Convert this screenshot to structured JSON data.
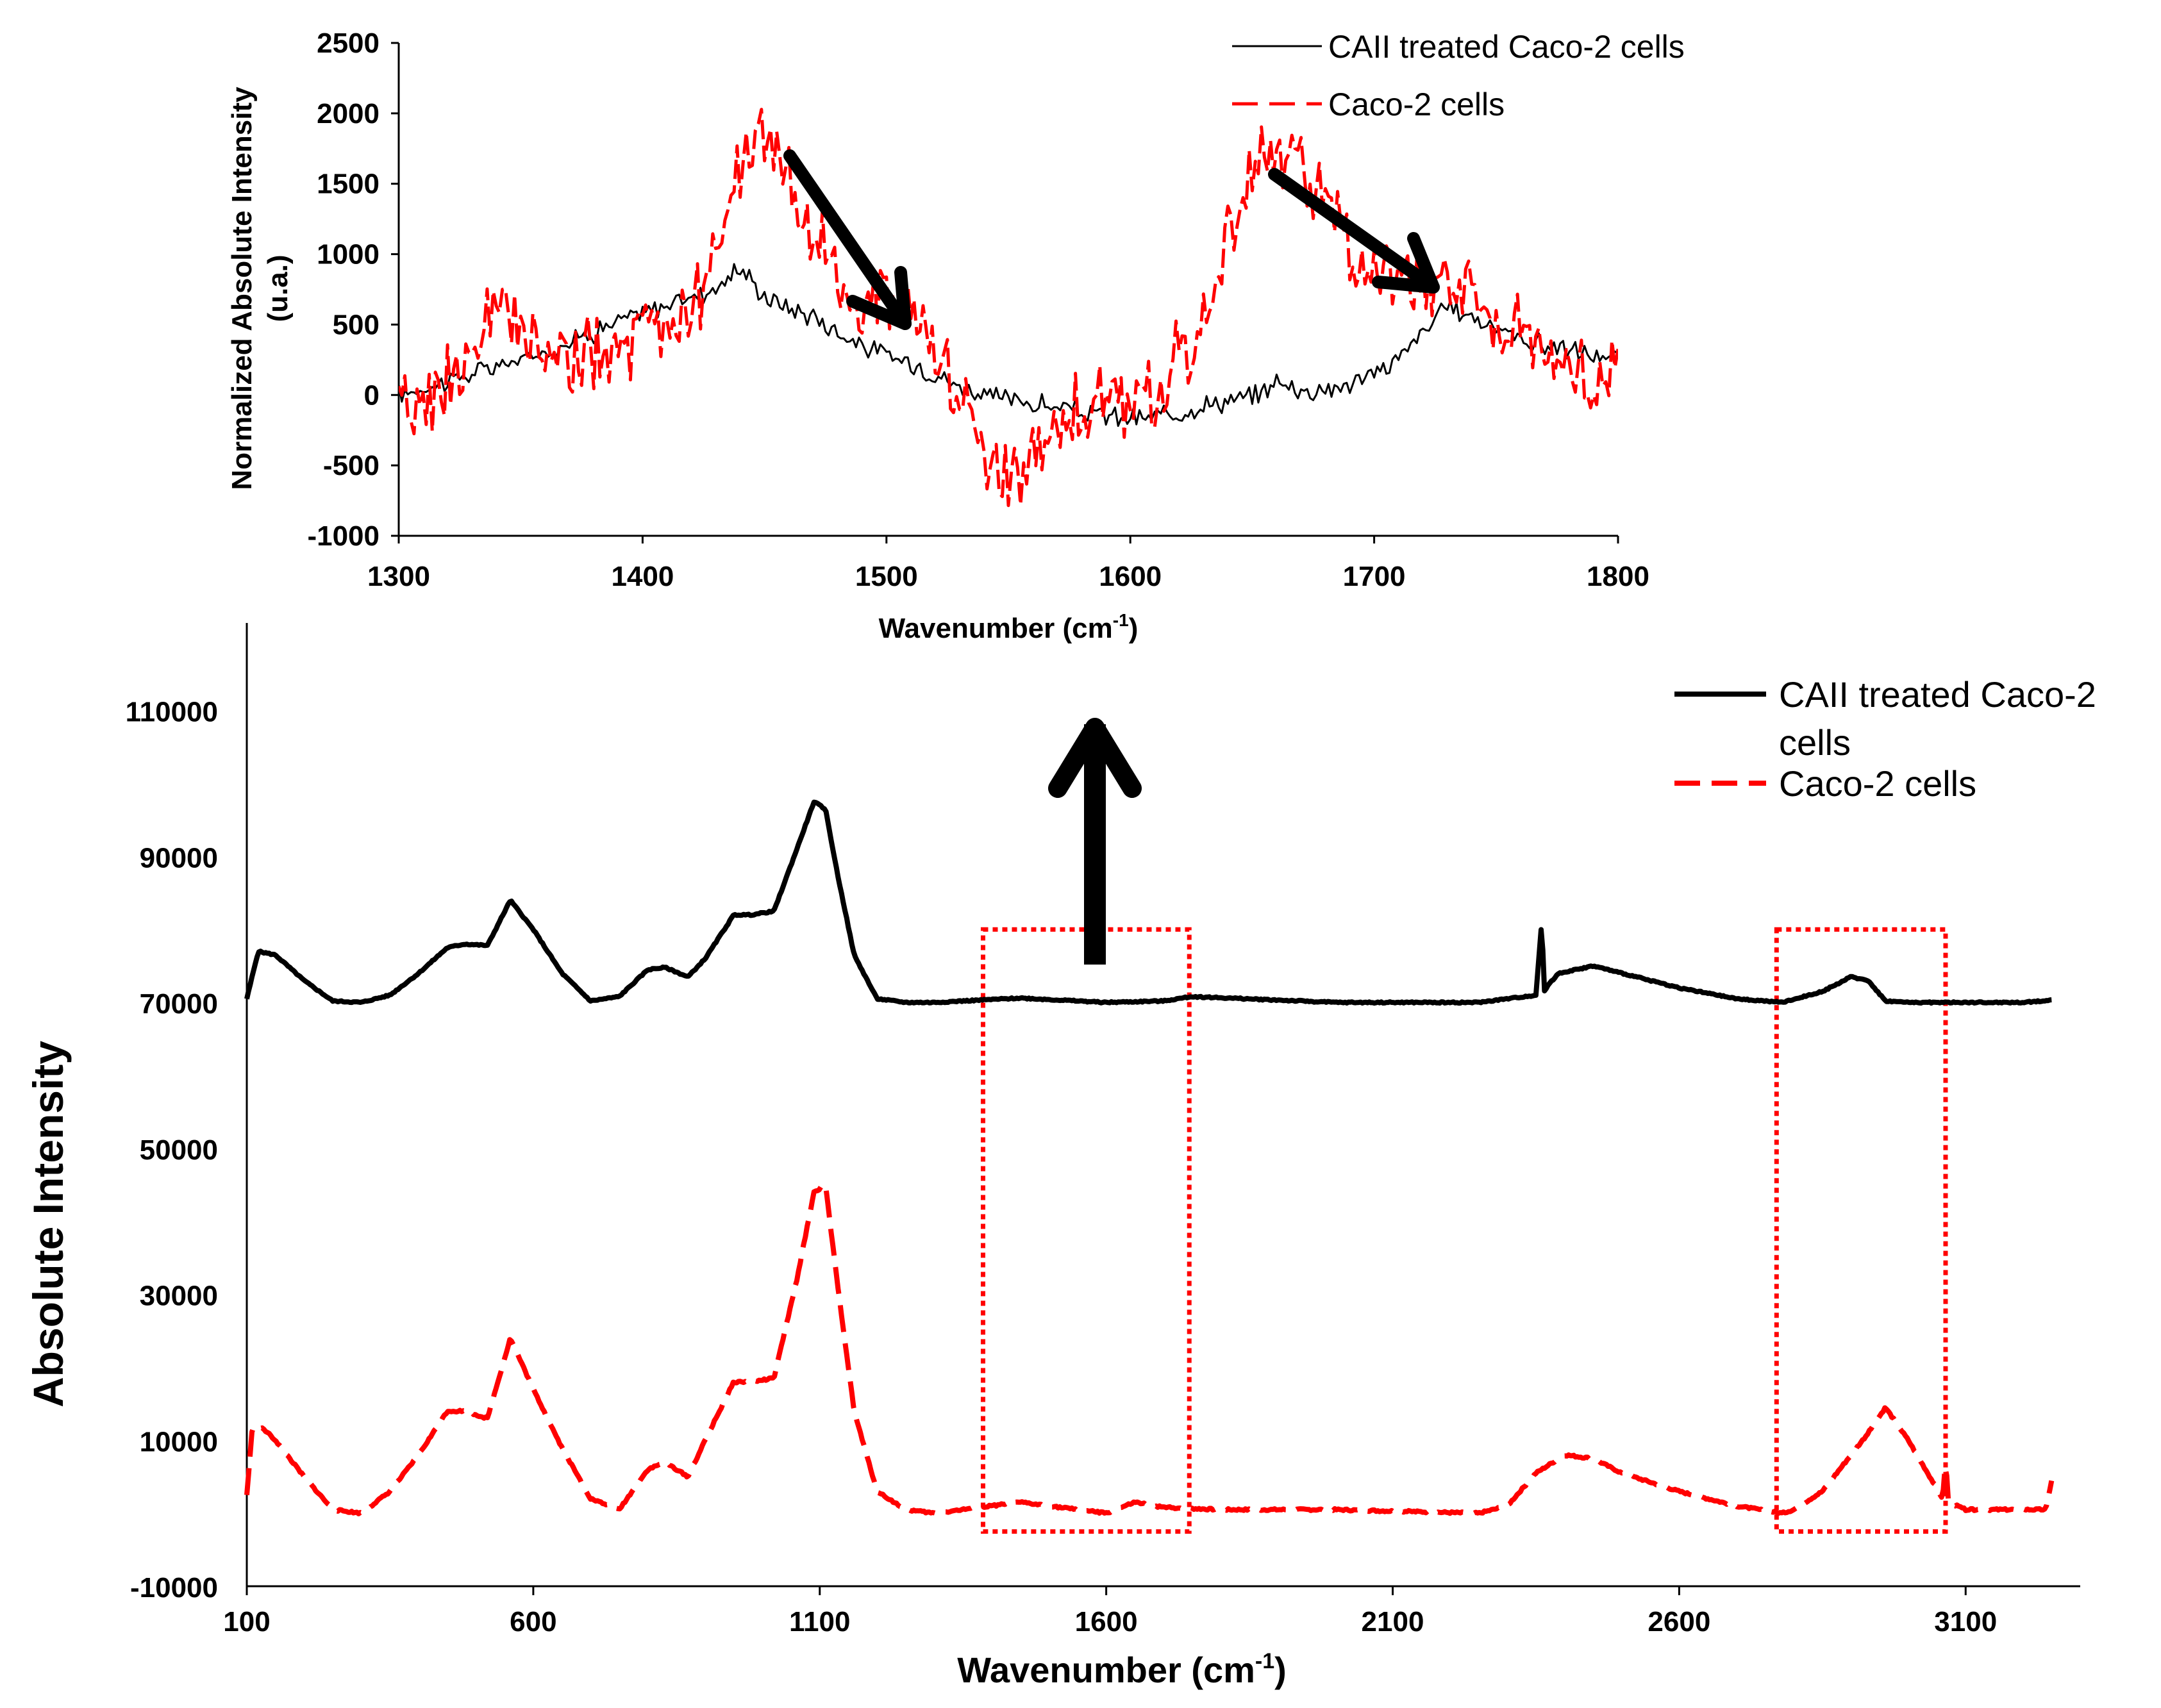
{
  "colors": {
    "treated": "#000000",
    "control": "#ff0000",
    "highlight": "#ff0000"
  },
  "chart_data": [
    {
      "type": "line",
      "title": "",
      "xlabel": "Wavenumber (cm",
      "xlabel_sup": "-1",
      "xlabel_close": ")",
      "ylabel": "Normalized Absolute Intensity",
      "ylabel2": "(u.a.)",
      "xlim": [
        1300,
        1800
      ],
      "ylim": [
        -1000,
        2500
      ],
      "xticks": [
        "1300",
        "1400",
        "1500",
        "1600",
        "1700",
        "1800"
      ],
      "yticks": [
        "2500",
        "2000",
        "1500",
        "1000",
        "500",
        "0",
        "-500",
        "-1000"
      ],
      "legend": [
        "CAII treated Caco-2 cells",
        "Caco-2 cells"
      ],
      "series": [
        {
          "name": "CAII treated Caco-2 cells",
          "style": "solid",
          "x": [
            1300,
            1310,
            1320,
            1330,
            1340,
            1350,
            1360,
            1370,
            1380,
            1390,
            1400,
            1410,
            1420,
            1430,
            1440,
            1450,
            1460,
            1470,
            1480,
            1490,
            1500,
            1510,
            1520,
            1530,
            1540,
            1550,
            1560,
            1570,
            1580,
            1590,
            1600,
            1610,
            1620,
            1630,
            1640,
            1650,
            1660,
            1670,
            1680,
            1690,
            1700,
            1710,
            1720,
            1730,
            1740,
            1750,
            1760,
            1770,
            1780,
            1790,
            1800
          ],
          "y": [
            0,
            50,
            100,
            150,
            200,
            250,
            300,
            380,
            450,
            520,
            580,
            640,
            700,
            760,
            900,
            700,
            620,
            560,
            450,
            350,
            280,
            230,
            150,
            60,
            0,
            -30,
            -60,
            -90,
            -120,
            -150,
            -170,
            -160,
            -120,
            -70,
            -40,
            -20,
            100,
            30,
            40,
            80,
            150,
            260,
            450,
            620,
            560,
            480,
            400,
            350,
            320,
            280,
            250
          ]
        },
        {
          "name": "Caco-2 cells",
          "style": "dashed",
          "x": [
            1300,
            1310,
            1320,
            1330,
            1340,
            1350,
            1360,
            1370,
            1380,
            1390,
            1400,
            1410,
            1420,
            1430,
            1440,
            1450,
            1460,
            1470,
            1480,
            1490,
            1500,
            1510,
            1520,
            1530,
            1540,
            1550,
            1560,
            1570,
            1580,
            1590,
            1600,
            1610,
            1620,
            1630,
            1640,
            1650,
            1660,
            1670,
            1680,
            1690,
            1700,
            1710,
            1720,
            1730,
            1740,
            1750,
            1760,
            1770,
            1780,
            1790,
            1800
          ],
          "y": [
            -150,
            -50,
            100,
            250,
            600,
            400,
            300,
            250,
            250,
            300,
            400,
            500,
            650,
            900,
            1600,
            1900,
            1500,
            1100,
            800,
            650,
            750,
            650,
            300,
            0,
            -500,
            -600,
            -350,
            -150,
            -100,
            -80,
            -50,
            0,
            300,
            500,
            1100,
            1600,
            1650,
            1700,
            1350,
            1050,
            900,
            850,
            800,
            850,
            750,
            550,
            400,
            300,
            200,
            150,
            150
          ]
        }
      ],
      "annotations": [
        "arrow down 1460→1510",
        "arrow down 1660→1725"
      ]
    },
    {
      "type": "line",
      "title": "",
      "xlabel": "Wavenumber (cm",
      "xlabel_sup": "-1",
      "xlabel_close": ")",
      "ylabel": "Absolute Intensity",
      "xlim": [
        100,
        3300
      ],
      "ylim": [
        -10000,
        122000
      ],
      "xticks": [
        "100",
        "600",
        "1100",
        "1600",
        "2100",
        "2600",
        "3100"
      ],
      "xtick_values": [
        100,
        600,
        1100,
        1600,
        2100,
        2600,
        3100
      ],
      "yticks": [
        "110000",
        "90000",
        "70000",
        "50000",
        "30000",
        "10000",
        "-10000"
      ],
      "ytick_values": [
        110000,
        90000,
        70000,
        50000,
        30000,
        10000,
        -10000
      ],
      "legend": [
        "CAII treated Caco-2",
        "cells",
        "Caco-2 cells"
      ],
      "highlight_ranges": [
        [
          1385,
          1745
        ],
        [
          2770,
          3065
        ]
      ],
      "highlight_ylim": [
        -2500,
        80000
      ],
      "series": [
        {
          "name": "CAII treated Caco-2 cells",
          "style": "solid",
          "x": [
            100,
            120,
            150,
            200,
            250,
            300,
            350,
            400,
            450,
            480,
            520,
            560,
            600,
            650,
            700,
            750,
            800,
            830,
            870,
            900,
            950,
            980,
            1020,
            1060,
            1090,
            1110,
            1130,
            1160,
            1200,
            1250,
            1300,
            1450,
            1500,
            1600,
            1700,
            1750,
            2000,
            2250,
            2350,
            2360,
            2365,
            2372,
            2390,
            2450,
            2500,
            2550,
            2600,
            2700,
            2780,
            2850,
            2900,
            2930,
            2960,
            3000,
            3100,
            3200,
            3250
          ],
          "y": [
            70500,
            77000,
            76500,
            73000,
            70200,
            70000,
            71000,
            74000,
            77500,
            78000,
            77800,
            84000,
            80000,
            74000,
            70200,
            70800,
            74500,
            74800,
            73500,
            76000,
            82000,
            82000,
            82500,
            91000,
            97500,
            96500,
            88000,
            76500,
            70500,
            70000,
            70000,
            70600,
            70400,
            70000,
            70200,
            70800,
            70000,
            70000,
            71000,
            81000,
            71500,
            72500,
            74000,
            75000,
            74000,
            73000,
            72000,
            70500,
            70000,
            71500,
            73500,
            73000,
            70200,
            70000,
            70000,
            70000,
            70300
          ]
        },
        {
          "name": "Caco-2 cells",
          "style": "dashed",
          "x": [
            100,
            110,
            130,
            150,
            200,
            250,
            300,
            350,
            400,
            450,
            480,
            520,
            560,
            600,
            650,
            700,
            750,
            800,
            830,
            870,
            900,
            950,
            980,
            1020,
            1060,
            1090,
            1110,
            1130,
            1160,
            1200,
            1250,
            1300,
            1450,
            1500,
            1600,
            1650,
            1700,
            1800,
            2000,
            2250,
            2300,
            2350,
            2400,
            2450,
            2500,
            2600,
            2700,
            2780,
            2800,
            2850,
            2900,
            2930,
            2960,
            3000,
            3060,
            3065,
            3070,
            3100,
            3200,
            3240,
            3250
          ],
          "y": [
            2500,
            12000,
            11500,
            10000,
            5000,
            500,
            0,
            3000,
            8000,
            14000,
            14000,
            13000,
            24000,
            17000,
            9000,
            2000,
            500,
            6000,
            7000,
            5000,
            10000,
            18000,
            18000,
            18500,
            32000,
            44000,
            45000,
            32000,
            14000,
            3000,
            500,
            0,
            1500,
            1000,
            0,
            1500,
            800,
            500,
            500,
            0,
            1000,
            5500,
            8000,
            7500,
            5500,
            3000,
            1000,
            0,
            500,
            3000,
            8000,
            11000,
            14500,
            10000,
            2000,
            7500,
            1500,
            500,
            500,
            500,
            4500
          ]
        }
      ],
      "annotations": [
        "arrow up from 1600 region"
      ]
    }
  ]
}
